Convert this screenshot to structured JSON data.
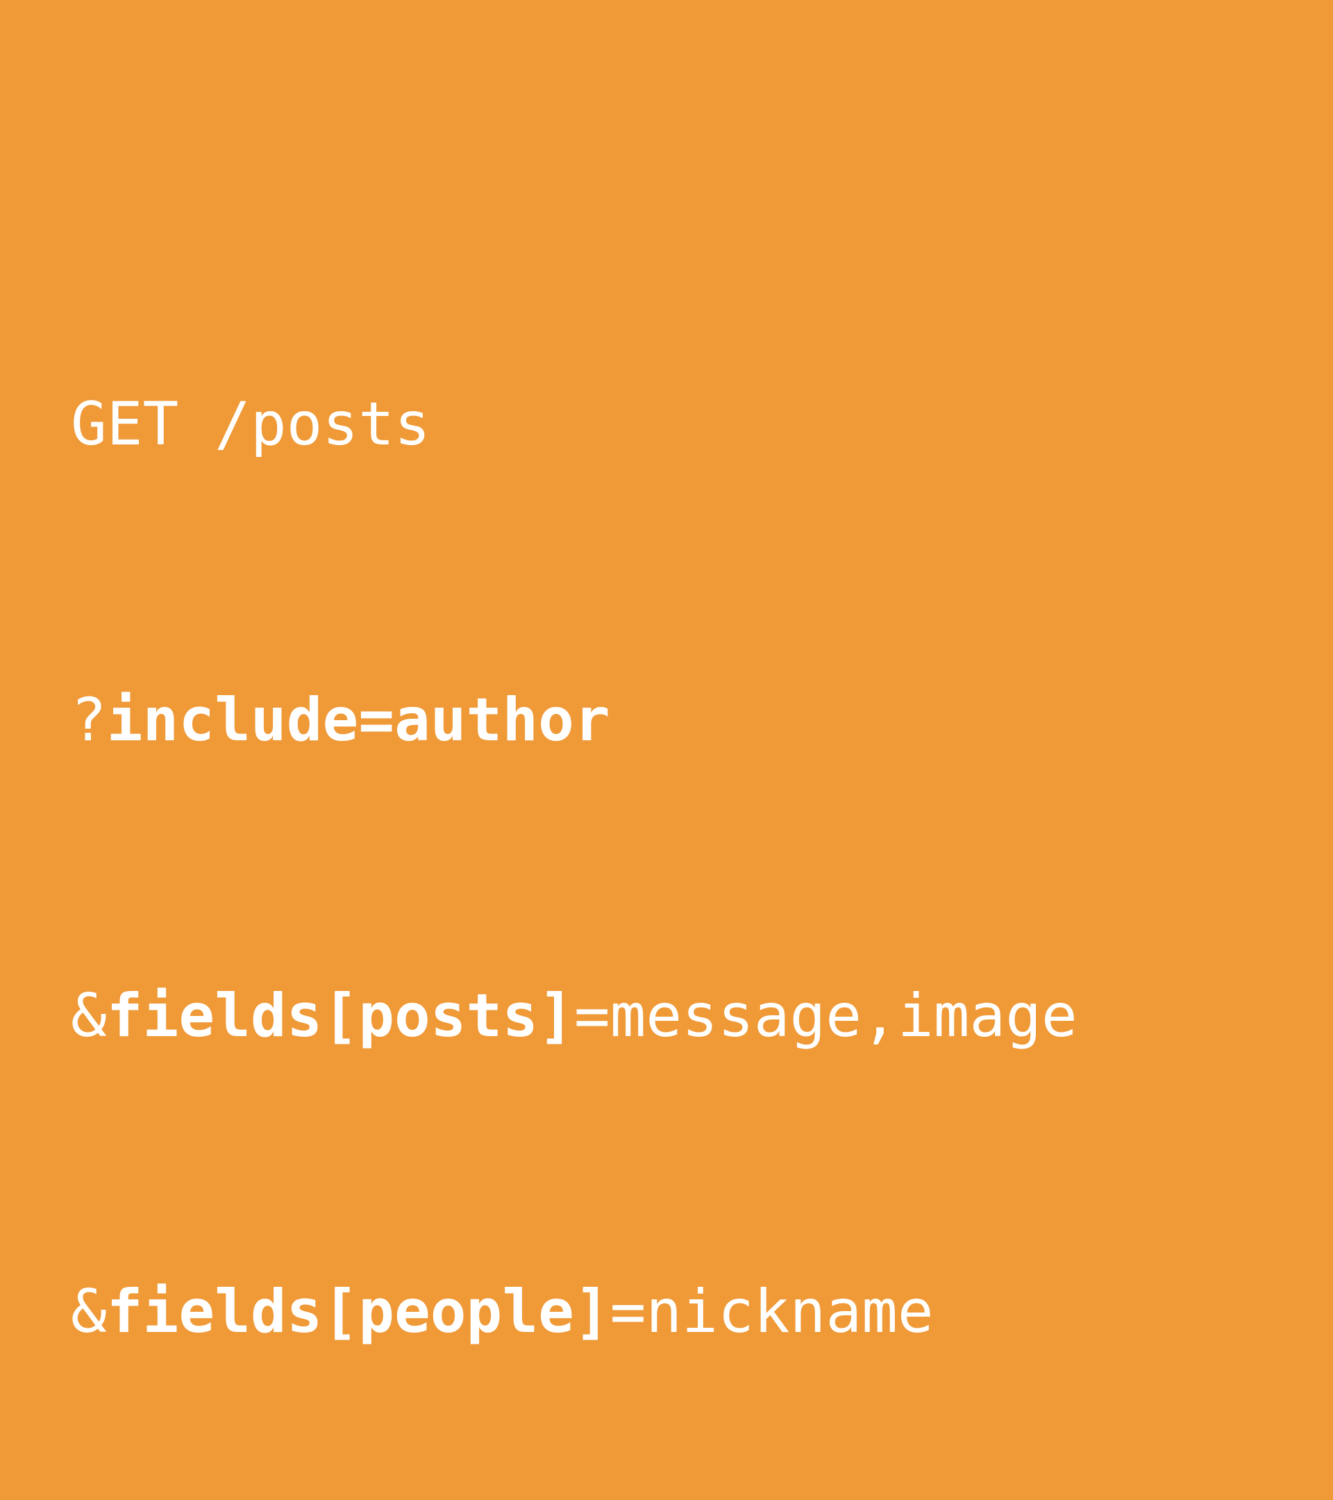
{
  "slide": {
    "background_color": "#ef9937",
    "text_color": "#ffffff",
    "lines": [
      {
        "segments": [
          {
            "text": "GET /posts",
            "weight": "regular"
          }
        ]
      },
      {
        "segments": [
          {
            "text": "?",
            "weight": "regular"
          },
          {
            "text": "include=author",
            "weight": "bold"
          }
        ]
      },
      {
        "segments": [
          {
            "text": "&",
            "weight": "regular"
          },
          {
            "text": "fields[posts]",
            "weight": "bold"
          },
          {
            "text": "=message,image",
            "weight": "regular"
          }
        ]
      },
      {
        "segments": [
          {
            "text": "&",
            "weight": "regular"
          },
          {
            "text": "fields[people]",
            "weight": "bold"
          },
          {
            "text": "=nickname",
            "weight": "regular"
          }
        ]
      }
    ]
  }
}
